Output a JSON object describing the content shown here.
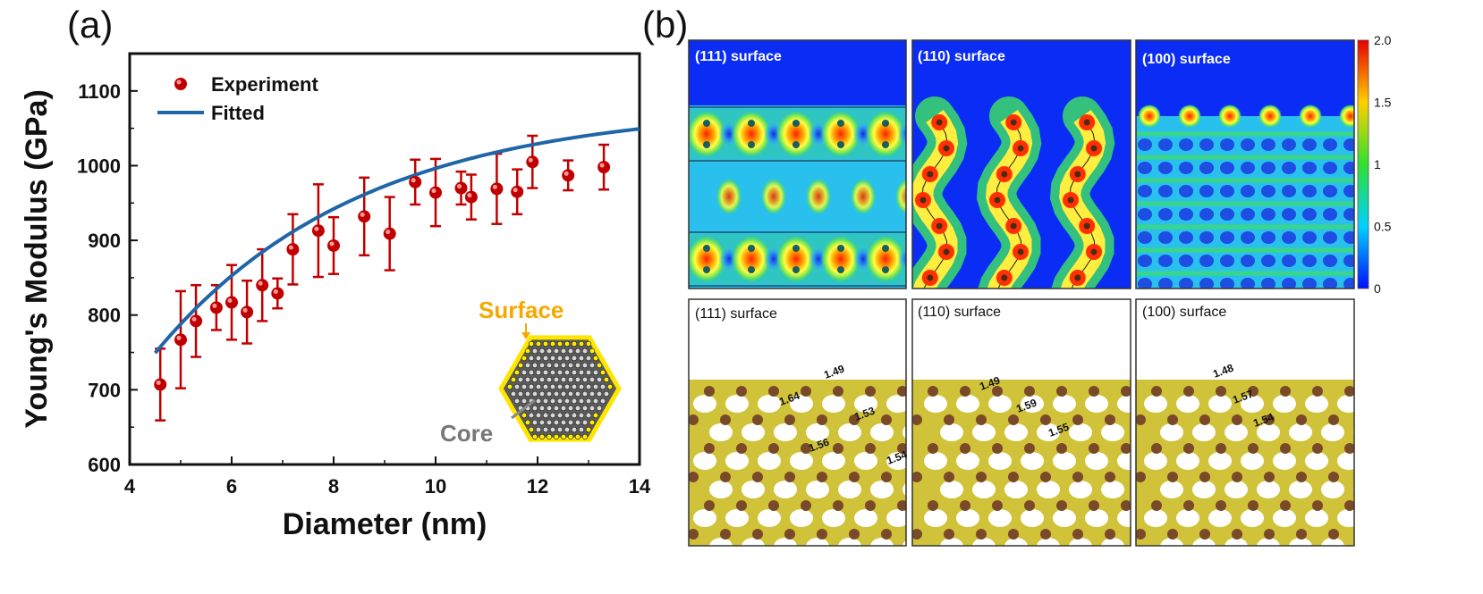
{
  "panel_a_label": "(a)",
  "panel_b_label": "(b)",
  "chart_data": {
    "type": "scatter",
    "title": "",
    "xlabel": "Diameter (nm)",
    "ylabel": "Young's Modulus (GPa)",
    "xlim": [
      4,
      14
    ],
    "ylim": [
      600,
      1150
    ],
    "xticks": [
      4,
      6,
      8,
      10,
      12,
      14
    ],
    "yticks": [
      600,
      700,
      800,
      900,
      1000,
      1100
    ],
    "legend": {
      "experiment": "Experiment",
      "fitted": "Fitted",
      "placement": "top-left"
    },
    "series": [
      {
        "name": "Experiment",
        "x": [
          4.6,
          5.0,
          5.3,
          5.7,
          6.0,
          6.3,
          6.6,
          6.9,
          7.2,
          7.7,
          8.0,
          8.6,
          9.1,
          9.6,
          10.0,
          10.5,
          10.7,
          11.2,
          11.6,
          11.9,
          12.6,
          13.3
        ],
        "y": [
          707,
          767,
          792,
          810,
          817,
          804,
          840,
          829,
          888,
          913,
          893,
          932,
          909,
          978,
          964,
          970,
          958,
          969,
          965,
          1005,
          987,
          998
        ],
        "err": [
          48,
          65,
          48,
          30,
          50,
          42,
          48,
          20,
          47,
          62,
          38,
          52,
          49,
          30,
          45,
          22,
          30,
          47,
          30,
          35,
          20,
          30
        ]
      },
      {
        "name": "Fitted",
        "curve": {
          "form": "a - b*exp(-x/c)",
          "a": 1080,
          "b": 1019,
          "c": 4.0,
          "x_start": 4.5,
          "x_end": 14.0
        }
      }
    ],
    "annotations": {
      "surface": "Surface",
      "core": "Core"
    }
  },
  "panel_b": {
    "colorbar": {
      "ticks": [
        "2.0",
        "1.5",
        "1",
        "0.5",
        "0"
      ],
      "colors": [
        "#e60000",
        "#ffff00",
        "#00e000",
        "#00e0ff",
        "#0000ff"
      ]
    },
    "top_labels": [
      "(111) surface",
      "(110) surface",
      "(100) surface"
    ],
    "bottom_labels": [
      "(111) surface",
      "(110) surface",
      "(100) surface"
    ],
    "bond_lengths": {
      "s111": [
        "1.49",
        "1.64",
        "1.53",
        "1.56",
        "1.54"
      ],
      "s110": [
        "1.49",
        "1.59",
        "1.55"
      ],
      "s100": [
        "1.48",
        "1.57",
        "1.54"
      ]
    }
  }
}
